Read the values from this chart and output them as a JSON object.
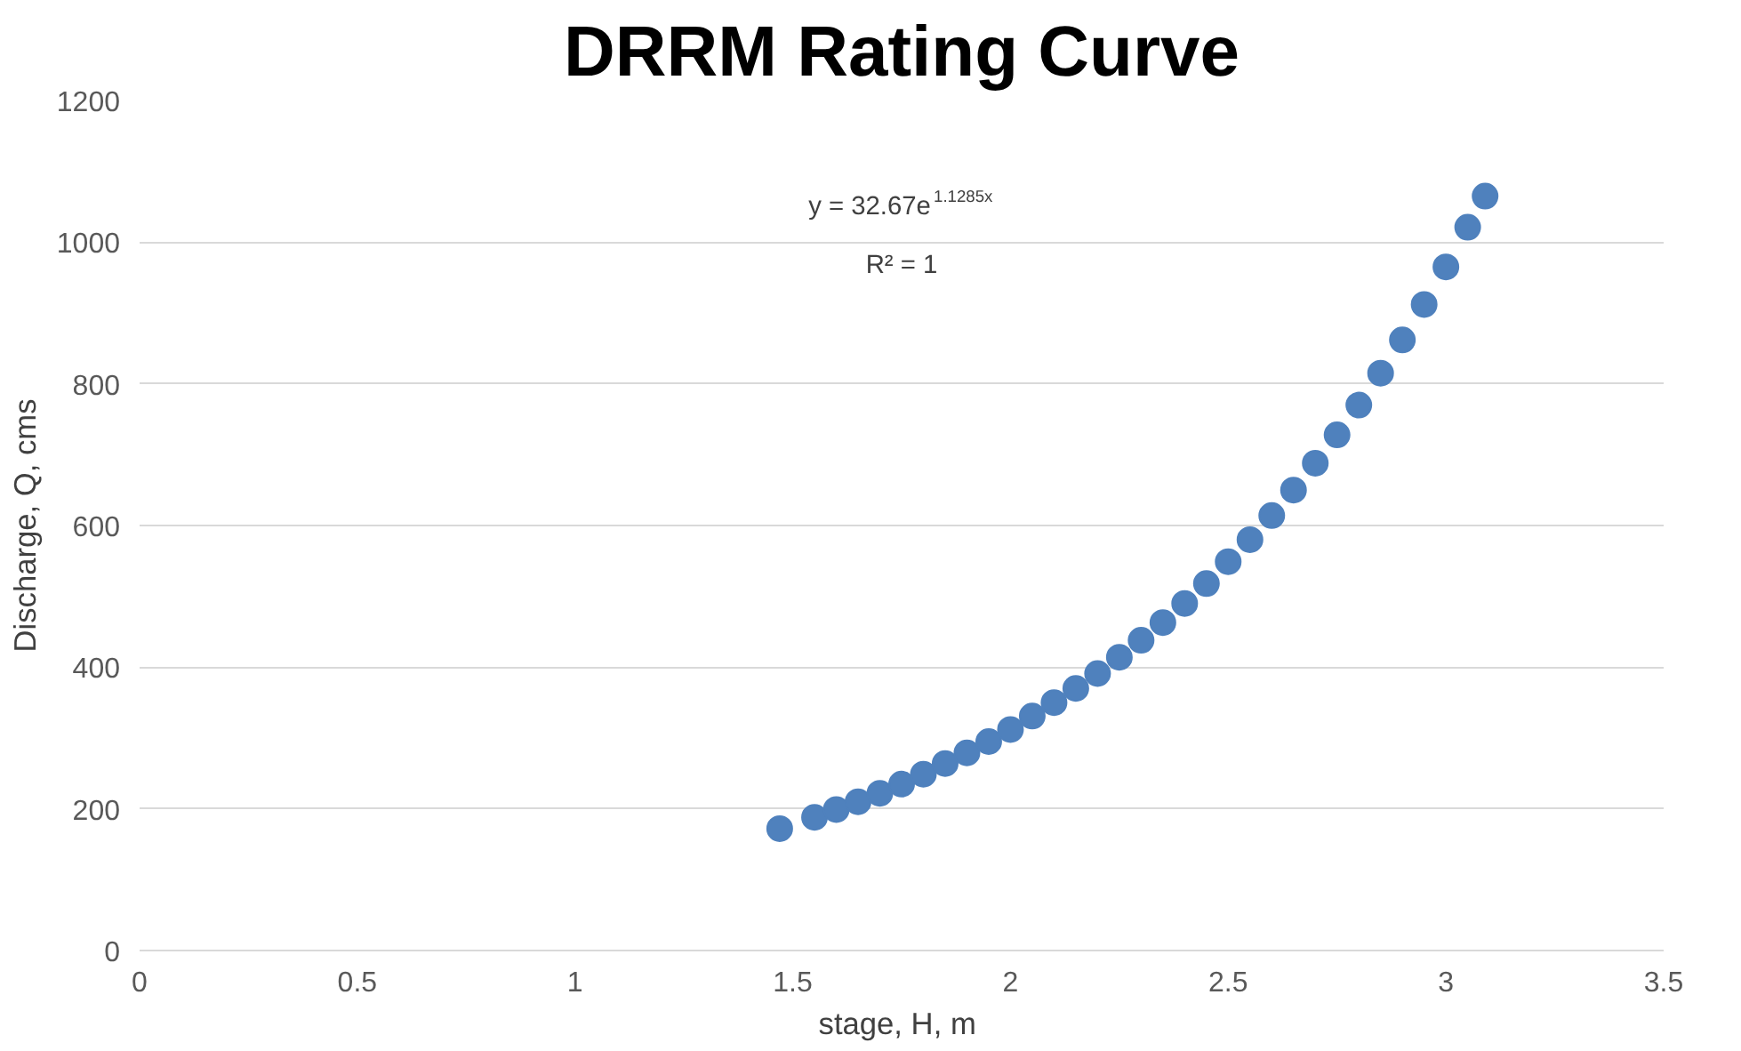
{
  "chart_data": {
    "type": "scatter",
    "title": "DRRM Rating Curve",
    "xlabel": "stage, H,  m",
    "ylabel": "Discharge, Q, cms",
    "x": [
      1.47,
      1.55,
      1.6,
      1.65,
      1.7,
      1.75,
      1.8,
      1.85,
      1.9,
      1.95,
      2.0,
      2.05,
      2.1,
      2.15,
      2.2,
      2.25,
      2.3,
      2.35,
      2.4,
      2.45,
      2.5,
      2.55,
      2.6,
      2.65,
      2.7,
      2.75,
      2.8,
      2.85,
      2.9,
      2.95,
      3.0,
      3.05,
      3.09
    ],
    "series": [
      {
        "color": "#4f81bd",
        "values": [
          172,
          188,
          199,
          210,
          222,
          235,
          249,
          264,
          279,
          295,
          312,
          331,
          350,
          370,
          391,
          414,
          438,
          463,
          490,
          518,
          549,
          580,
          614,
          650,
          688,
          728,
          770,
          815,
          862,
          912,
          965,
          1021,
          1065
        ]
      }
    ],
    "xlim": [
      0,
      3.5
    ],
    "xticks": [
      0,
      0.5,
      1,
      1.5,
      2,
      2.5,
      3,
      3.5
    ],
    "ylim": [
      0,
      1200
    ],
    "yticks": [
      0,
      200,
      400,
      600,
      800,
      1000,
      1200
    ],
    "grid": "y",
    "marker": "circle",
    "annotations": [
      "y = 32.67e$^{1.1285x}$",
      "R² = 1"
    ]
  }
}
